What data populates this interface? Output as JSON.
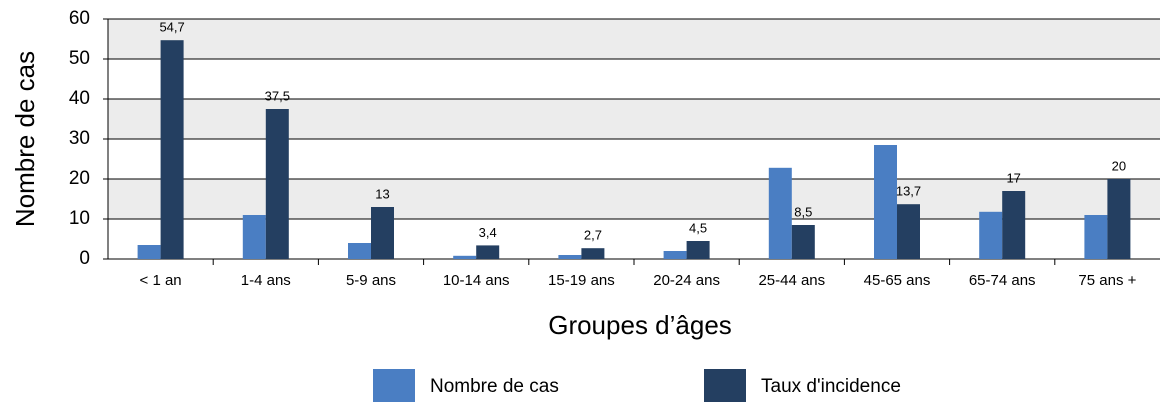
{
  "chart_data": {
    "type": "bar",
    "categories": [
      "< 1 an",
      "1-4 ans",
      "5-9 ans",
      "10-14 ans",
      "15-19 ans",
      "20-24 ans",
      "25-44 ans",
      "45-65 ans",
      "65-74 ans",
      "75 ans +"
    ],
    "series": [
      {
        "name": "Nombre de cas",
        "color": "#4a7ec3",
        "values": [
          3.5,
          11,
          4,
          0.8,
          1,
          2,
          22.8,
          28.5,
          11.8,
          11
        ]
      },
      {
        "name": "Taux d'incidence",
        "color": "#243f61",
        "values": [
          54.7,
          37.5,
          13,
          3.4,
          2.7,
          4.5,
          8.5,
          13.7,
          17,
          20
        ],
        "value_labels": [
          "54,7",
          "37,5",
          "13",
          "3,4",
          "2,7",
          "4,5",
          "8,5",
          "13,7",
          "17",
          "20"
        ]
      }
    ],
    "ylabel": "Nombre de cas",
    "xlabel": "Groupes d’âges",
    "ylim": [
      0,
      60
    ],
    "yticks": [
      0,
      10,
      20,
      30,
      40,
      50,
      60
    ],
    "grid": true,
    "legend": "bottom"
  }
}
